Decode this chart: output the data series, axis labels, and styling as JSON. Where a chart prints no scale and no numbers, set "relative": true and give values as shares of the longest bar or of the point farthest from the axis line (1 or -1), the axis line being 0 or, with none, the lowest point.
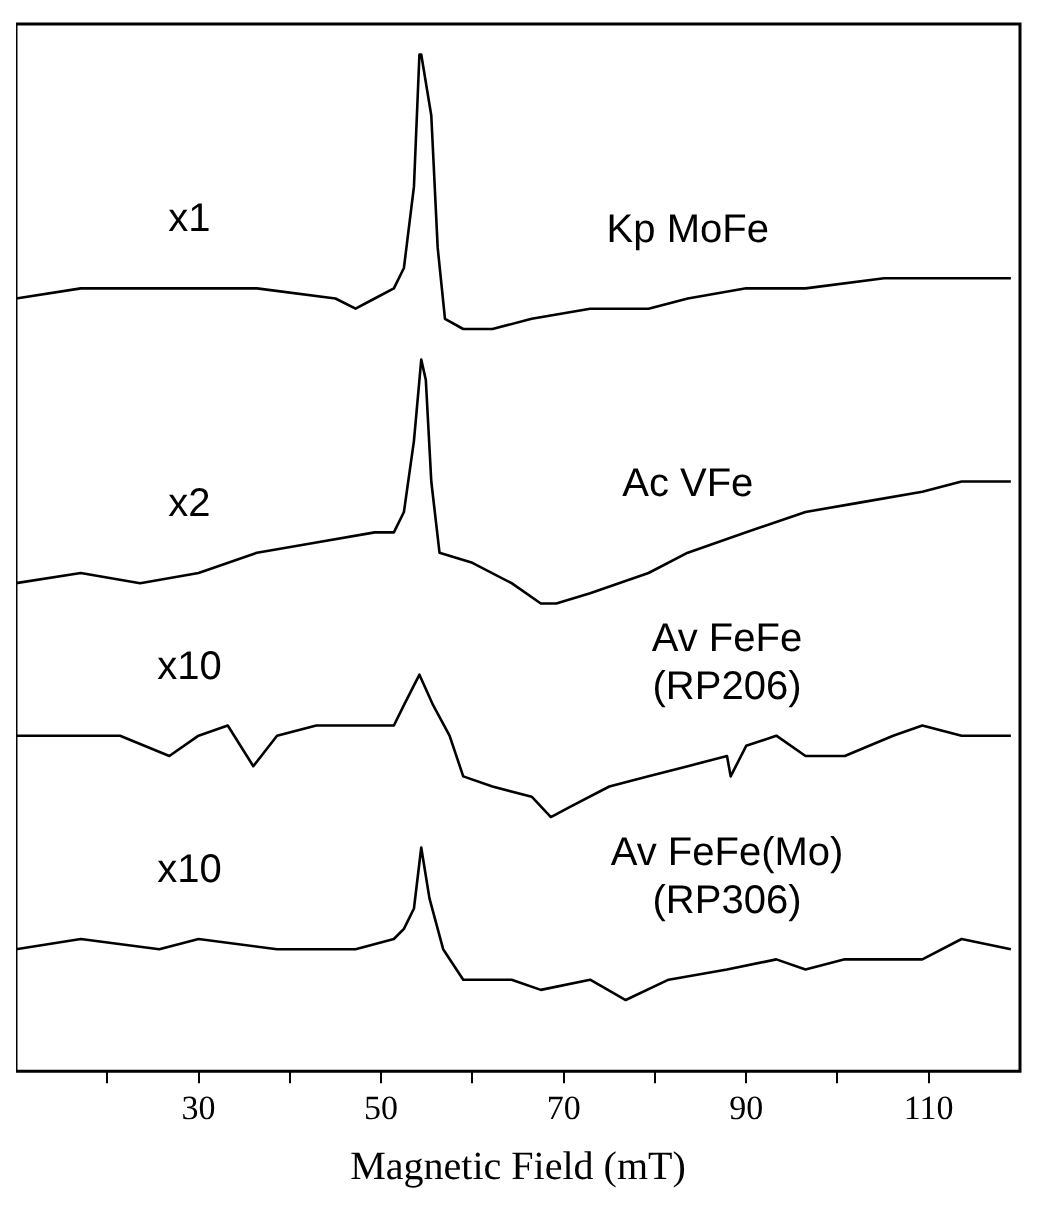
{
  "chart_data": {
    "type": "line",
    "relative": true,
    "xlabel": "Magnetic Field (mT)",
    "xlim": [
      10,
      120
    ],
    "xticks": [
      {
        "value": 20,
        "label": null
      },
      30,
      {
        "value": 40,
        "label": null
      },
      50,
      {
        "value": 60,
        "label": null
      },
      70,
      {
        "value": 80,
        "label": null
      },
      90,
      {
        "value": 100,
        "label": null
      },
      110
    ],
    "legend": false,
    "grid": false,
    "marker": "none",
    "line_style": "solid",
    "annotations": [
      "x1",
      "x2",
      "x10",
      "x10"
    ],
    "series": [
      {
        "name": "Kp MoFe",
        "color": "#000000",
        "x": [
          10,
          17.1,
          27.9,
          36.4,
          45,
          47.2,
          49.3,
          51.4,
          52.5,
          53.6,
          54.2,
          54.4,
          55.5,
          56.2,
          57,
          59,
          62.2,
          66.5,
          72.9,
          79.3,
          83.6,
          90,
          96.5,
          105.1,
          113.6,
          119
        ],
        "values": [
          0.76,
          0.77,
          0.77,
          0.77,
          0.76,
          0.75,
          0.76,
          0.77,
          0.79,
          0.87,
          1.0,
          1.0,
          0.94,
          0.81,
          0.74,
          0.73,
          0.73,
          0.74,
          0.75,
          0.75,
          0.76,
          0.77,
          0.77,
          0.78,
          0.78,
          0.78
        ]
      },
      {
        "name": "Ac VFe",
        "color": "#000000",
        "x": [
          10,
          17.1,
          23.6,
          30,
          36.4,
          42.9,
          49.3,
          51.4,
          52.5,
          53.6,
          54.4,
          54.9,
          55.5,
          56.4,
          60,
          64.3,
          67.5,
          69.2,
          72.9,
          79.3,
          83.6,
          90,
          96.5,
          102.9,
          109.3,
          113.6,
          119
        ],
        "values": [
          0.48,
          0.49,
          0.48,
          0.49,
          0.51,
          0.52,
          0.53,
          0.53,
          0.55,
          0.62,
          0.7,
          0.68,
          0.58,
          0.51,
          0.5,
          0.48,
          0.46,
          0.46,
          0.47,
          0.49,
          0.51,
          0.53,
          0.55,
          0.56,
          0.57,
          0.58,
          0.58
        ]
      },
      {
        "name": "Av FeFe (RP206)",
        "color": "#000000",
        "x": [
          10,
          17.1,
          21.4,
          26.8,
          30,
          33.2,
          36,
          38.6,
          42.9,
          47.2,
          51.4,
          52.5,
          54.2,
          55.7,
          57.5,
          59,
          62.2,
          66.5,
          68.6,
          70.7,
          75,
          79.3,
          83.6,
          87.9,
          88.3,
          90,
          93.3,
          96.5,
          100.8,
          106.1,
          109.3,
          113.6,
          119
        ],
        "values": [
          0.33,
          0.33,
          0.33,
          0.31,
          0.33,
          0.34,
          0.3,
          0.33,
          0.34,
          0.34,
          0.34,
          0.36,
          0.39,
          0.36,
          0.33,
          0.29,
          0.28,
          0.27,
          0.25,
          0.26,
          0.28,
          0.29,
          0.3,
          0.31,
          0.29,
          0.32,
          0.33,
          0.31,
          0.31,
          0.33,
          0.34,
          0.33,
          0.33
        ]
      },
      {
        "name": "Av FeFe(Mo) (RP306)",
        "color": "#000000",
        "x": [
          10,
          17.1,
          25.7,
          30,
          38.6,
          47.2,
          51.4,
          52.5,
          53.6,
          54.4,
          55.3,
          56.8,
          59,
          64.3,
          67.5,
          72.9,
          76.8,
          81.5,
          87.9,
          93.3,
          96.5,
          100.8,
          109.3,
          113.6,
          119
        ],
        "values": [
          0.12,
          0.13,
          0.12,
          0.13,
          0.12,
          0.12,
          0.13,
          0.14,
          0.16,
          0.22,
          0.17,
          0.12,
          0.09,
          0.09,
          0.08,
          0.09,
          0.07,
          0.09,
          0.1,
          0.11,
          0.1,
          0.11,
          0.11,
          0.13,
          0.12
        ]
      }
    ]
  }
}
